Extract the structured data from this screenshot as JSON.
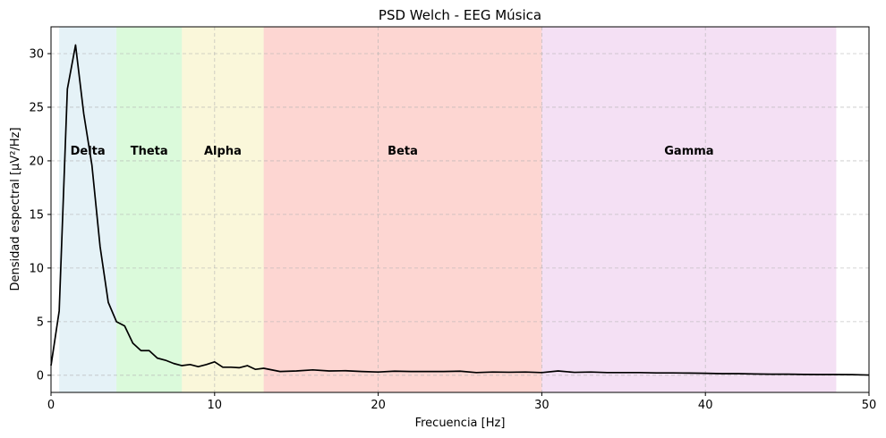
{
  "chart_data": {
    "type": "line",
    "title": "PSD Welch - EEG Música",
    "xlabel": "Frecuencia [Hz]",
    "ylabel": "Densidad espectral [µV²/Hz]",
    "xlim": [
      0,
      50
    ],
    "ylim": [
      -1.6,
      32.5
    ],
    "xticks": [
      0,
      10,
      20,
      30,
      40,
      50
    ],
    "yticks": [
      0,
      5,
      10,
      15,
      20,
      25,
      30
    ],
    "grid": true,
    "bands": [
      {
        "name": "Delta",
        "range": [
          0.5,
          4
        ],
        "color": "#add8e6"
      },
      {
        "name": "Theta",
        "range": [
          4,
          8
        ],
        "color": "#90ee90"
      },
      {
        "name": "Alpha",
        "range": [
          8,
          13
        ],
        "color": "#f0e68c"
      },
      {
        "name": "Beta",
        "range": [
          13,
          30
        ],
        "color": "#fa8072"
      },
      {
        "name": "Gamma",
        "range": [
          30,
          48
        ],
        "color": "#dda0dd"
      }
    ],
    "series": [
      {
        "color": "#000000",
        "x": [
          0,
          0.5,
          1,
          1.5,
          2,
          2.5,
          3,
          3.5,
          4,
          4.5,
          5,
          5.5,
          6,
          6.5,
          7,
          7.5,
          8,
          8.5,
          9,
          9.5,
          10,
          10.5,
          11,
          11.5,
          12,
          12.5,
          13,
          14,
          15,
          16,
          17,
          18,
          19,
          20,
          21,
          22,
          23,
          24,
          25,
          26,
          27,
          28,
          29,
          30,
          31,
          32,
          33,
          34,
          35,
          36,
          37,
          38,
          39,
          40,
          41,
          42,
          43,
          44,
          45,
          46,
          47,
          48,
          49,
          50
        ],
        "y": [
          0.9,
          6.0,
          26.7,
          30.8,
          24.4,
          19.6,
          12.0,
          6.8,
          5.0,
          4.6,
          3.0,
          2.3,
          2.3,
          1.6,
          1.4,
          1.1,
          0.9,
          1.0,
          0.8,
          1.0,
          1.25,
          0.75,
          0.75,
          0.7,
          0.9,
          0.55,
          0.65,
          0.35,
          0.4,
          0.5,
          0.4,
          0.42,
          0.35,
          0.3,
          0.38,
          0.35,
          0.35,
          0.35,
          0.38,
          0.25,
          0.3,
          0.28,
          0.3,
          0.25,
          0.4,
          0.27,
          0.3,
          0.25,
          0.25,
          0.25,
          0.22,
          0.22,
          0.2,
          0.18,
          0.15,
          0.15,
          0.12,
          0.1,
          0.1,
          0.08,
          0.07,
          0.07,
          0.06,
          0.02
        ]
      }
    ]
  }
}
